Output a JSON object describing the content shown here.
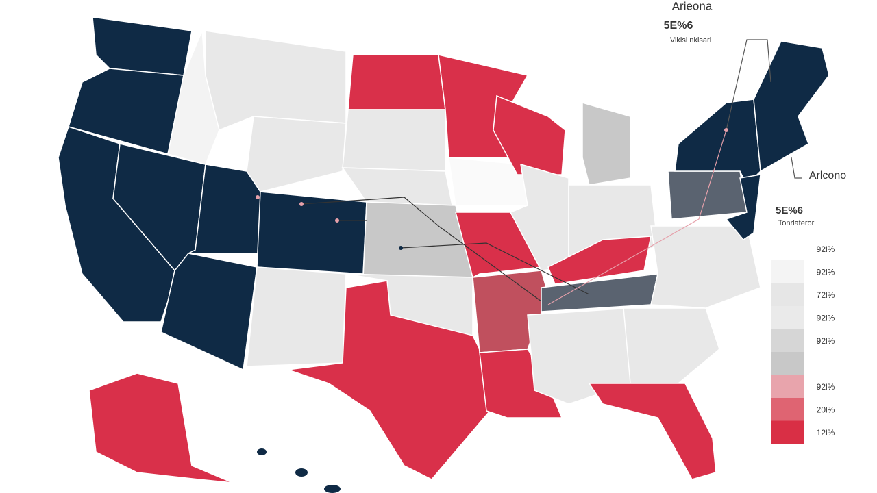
{
  "annotations": [
    {
      "title": "Arieona",
      "value": "5E%6",
      "note": "Viklsi nkisarl"
    },
    {
      "title": "Arlcono",
      "value": "5E%6",
      "note": "Tonrlateror"
    }
  ],
  "legend": {
    "items": [
      {
        "label": "92l%",
        "color": "#f4f4f4"
      },
      {
        "label": "92l%",
        "color": "#e6e6e6"
      },
      {
        "label": "72l%",
        "color": "#eaeaea"
      },
      {
        "label": "92l%",
        "color": "#d6d6d6"
      },
      {
        "label": "92l%",
        "color": "#c8c8c8"
      },
      {
        "label": "92l%",
        "color": "#e8a4ac"
      },
      {
        "label": "20l%",
        "color": "#df6472"
      },
      {
        "label": "12l%",
        "color": "#d92f45"
      }
    ]
  }
}
